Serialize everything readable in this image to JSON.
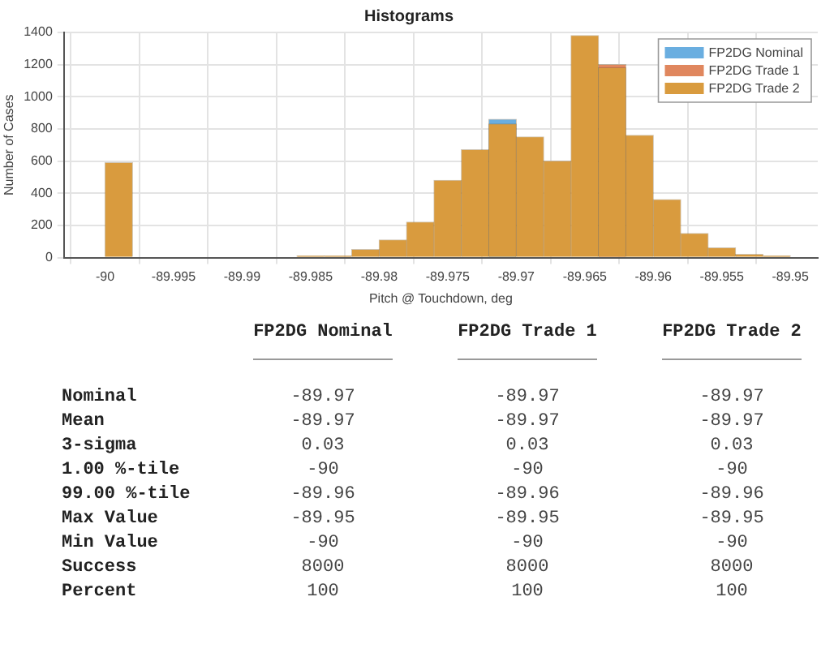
{
  "chart_data": [
    {
      "type": "histogram",
      "title": "Histograms",
      "xlabel": "Pitch @ Touchdown, deg",
      "ylabel": "Number of Cases",
      "bins": [
        -90,
        -89.998,
        -89.996,
        -89.994,
        -89.992,
        -89.99,
        -89.988,
        -89.986,
        -89.984,
        -89.982,
        -89.98,
        -89.978,
        -89.976,
        -89.974,
        -89.972,
        -89.97,
        -89.968,
        -89.966,
        -89.964,
        -89.962,
        -89.96,
        -89.958,
        -89.956,
        -89.954,
        -89.952,
        -89.95
      ],
      "series": [
        {
          "name": "FP2DG Nominal",
          "color": "#6aaee0",
          "values": [
            null,
            null,
            null,
            null,
            null,
            null,
            null,
            null,
            null,
            null,
            null,
            null,
            null,
            null,
            860,
            null,
            null,
            null,
            null,
            null,
            null,
            null,
            null,
            null,
            null
          ]
        },
        {
          "name": "FP2DG Trade 1",
          "color": "#e0875e",
          "values": [
            null,
            null,
            null,
            null,
            null,
            null,
            null,
            null,
            null,
            null,
            null,
            null,
            null,
            null,
            null,
            null,
            null,
            null,
            1200,
            null,
            null,
            null,
            null,
            null,
            null
          ]
        },
        {
          "name": "FP2DG Trade 2",
          "color": "#d99b3e",
          "values": [
            590,
            0,
            0,
            0,
            0,
            0,
            0,
            10,
            10,
            50,
            110,
            220,
            480,
            670,
            830,
            750,
            600,
            1380,
            1180,
            760,
            360,
            150,
            60,
            20,
            10
          ]
        }
      ],
      "xlim": [
        -90.003,
        -89.948
      ],
      "xticks": [
        -90,
        -89.995,
        -89.99,
        -89.985,
        -89.98,
        -89.975,
        -89.97,
        -89.965,
        -89.96,
        -89.955,
        -89.95
      ],
      "ylim": [
        0,
        1400
      ],
      "yticks": [
        0,
        200,
        400,
        600,
        800,
        1000,
        1200,
        1400
      ],
      "grid": true,
      "legend": "top right"
    },
    {
      "type": "other",
      "annotations": [
        "FP2DG Nominal",
        "FP2DG Trade 1",
        "FP2DG Trade 2",
        "Nominal",
        "-89.97",
        "-89.97",
        "-89.97",
        "Mean",
        "-89.97",
        "-89.97",
        "-89.97",
        "3-sigma",
        "0.03",
        "0.03",
        "0.03",
        "1.00 %-tile",
        "-90",
        "-90",
        "-90",
        "99.00 %-tile",
        "-89.96",
        "-89.96",
        "-89.96",
        "Max Value",
        "-89.95",
        "-89.95",
        "-89.95",
        "Min Value",
        "-90",
        "-90",
        "-90",
        "Success",
        "8000",
        "8000",
        "8000",
        "Percent",
        "100",
        "100",
        "100"
      ]
    }
  ]
}
